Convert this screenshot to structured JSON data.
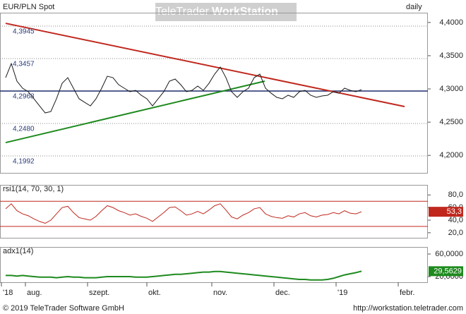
{
  "watermark": [
    "TeleTrader",
    "WorkStation"
  ],
  "footer": {
    "copyright": "© 2019 TeleTrader Software GmbH",
    "url": "http://workstation.teletrader.com"
  },
  "chart_data": [
    {
      "type": "line",
      "title": "EUR/PLN Spot",
      "period": "daily",
      "color": "#1a1a1a",
      "x": [
        2,
        4,
        6,
        8,
        10,
        12,
        14,
        16,
        18,
        20,
        22,
        24,
        26,
        28,
        30,
        32,
        34,
        36,
        38,
        40,
        42,
        44,
        46,
        48,
        50,
        52,
        54,
        56,
        58,
        60,
        62,
        64,
        66,
        68,
        70,
        72,
        74,
        76,
        78,
        80,
        82,
        84,
        86,
        88,
        90,
        92,
        94,
        96,
        98,
        100,
        102,
        104,
        106,
        108,
        110,
        112,
        114,
        116,
        118,
        120,
        122,
        124,
        126,
        128
      ],
      "values": [
        4.317,
        4.3382,
        4.3117,
        4.3011,
        4.2958,
        4.2852,
        4.2745,
        4.2639,
        4.266,
        4.2852,
        4.3085,
        4.317,
        4.3011,
        4.2852,
        4.2798,
        4.2745,
        4.2852,
        4.3011,
        4.3191,
        4.317,
        4.3064,
        4.3011,
        4.2958,
        4.2979,
        4.2905,
        4.2852,
        4.2745,
        4.2852,
        4.2958,
        4.3117,
        4.3149,
        4.3064,
        4.2958,
        4.2979,
        4.3043,
        4.2979,
        4.3085,
        4.3223,
        4.3329,
        4.317,
        4.2958,
        4.2873,
        4.2958,
        4.3011,
        4.317,
        4.3223,
        4.3011,
        4.2936,
        4.2873,
        4.2852,
        4.2905,
        4.2873,
        4.2958,
        4.2979,
        4.2905,
        4.2873,
        4.2894,
        4.2905,
        4.2958,
        4.2936,
        4.3011,
        4.2979,
        4.2958,
        4.299
      ],
      "xlim": [
        0,
        151.5
      ],
      "ylim": [
        4.1737,
        4.4147
      ],
      "yticks": [
        {
          "value": 4.2,
          "label": "4,2000"
        },
        {
          "value": 4.25,
          "label": "4,2500"
        },
        {
          "value": 4.3,
          "label": "4,3000"
        },
        {
          "value": 4.35,
          "label": "4,3500"
        },
        {
          "value": 4.4,
          "label": "4,4000"
        }
      ],
      "levels": [
        {
          "value": 4.3945,
          "label": "4,3945"
        },
        {
          "value": 4.3457,
          "label": "4,3457"
        },
        {
          "value": 4.2968,
          "label": "4,2968"
        },
        {
          "value": 4.248,
          "label": "4,2480"
        },
        {
          "value": 4.1992,
          "label": "4,1992"
        }
      ],
      "reference_line": {
        "value": 4.2968,
        "color": "#1f2d6b"
      },
      "trendlines": [
        {
          "color": "#c0281e",
          "x": [
            2,
            143.25
          ],
          "values": [
            4.3987,
            4.2735
          ]
        },
        {
          "color": "#1e8a1e",
          "x": [
            2,
            93.75
          ],
          "values": [
            4.2193,
            4.3117
          ]
        }
      ]
    },
    {
      "type": "line",
      "title": "rsi1(14, 70, 30, 1)",
      "color": "#c0281e",
      "values": [
        58,
        66,
        55,
        50,
        47,
        42,
        38,
        35,
        40,
        50,
        60,
        62,
        52,
        44,
        42,
        40,
        46,
        55,
        63,
        60,
        55,
        52,
        48,
        50,
        46,
        43,
        38,
        45,
        52,
        60,
        61,
        55,
        48,
        50,
        54,
        50,
        56,
        63,
        66,
        56,
        45,
        42,
        48,
        52,
        58,
        60,
        50,
        46,
        44,
        43,
        47,
        45,
        50,
        52,
        47,
        45,
        48,
        49,
        52,
        50,
        55,
        51,
        50,
        53.3
      ],
      "last_value_label": "53,3",
      "xlim": [
        0,
        151.5
      ],
      "ylim": [
        12,
        96
      ],
      "yticks": [
        {
          "value": 20,
          "label": "20,0"
        },
        {
          "value": 40,
          "label": "40,0"
        },
        {
          "value": 60,
          "label": "60,0"
        },
        {
          "value": 80,
          "label": "80,0"
        }
      ],
      "bands": [
        70,
        30
      ]
    },
    {
      "type": "line",
      "title": "adx1(14)",
      "color": "#1e8a1e",
      "values": [
        22,
        22,
        21,
        22,
        21,
        20,
        19,
        19,
        19,
        18,
        19,
        20,
        19,
        19,
        18,
        18,
        18,
        19,
        20,
        20,
        20,
        20,
        20,
        19,
        19,
        19,
        20,
        21,
        22,
        23,
        24,
        24,
        25,
        26,
        27,
        28,
        28,
        29,
        29,
        28,
        27,
        26,
        25,
        24,
        23,
        22,
        21,
        20,
        19,
        18,
        17,
        16,
        15,
        15,
        14,
        14,
        14,
        15,
        17,
        20,
        23,
        25,
        27,
        29.5629
      ],
      "last_value_label": "29,5629",
      "xlim": [
        0,
        151.5
      ],
      "ylim": [
        10,
        72.5
      ],
      "yticks": [
        {
          "value": 20,
          "label": "20,0000"
        },
        {
          "value": 60,
          "label": "60,0000"
        }
      ],
      "xticks": [
        {
          "value": 0.5,
          "label": "'18"
        },
        {
          "value": 9,
          "label": "aug."
        },
        {
          "value": 31,
          "label": "szept."
        },
        {
          "value": 52,
          "label": "okt."
        },
        {
          "value": 75,
          "label": "nov."
        },
        {
          "value": 97,
          "label": "dec."
        },
        {
          "value": 119,
          "label": "'19"
        },
        {
          "value": 141,
          "label": "febr."
        }
      ]
    }
  ]
}
